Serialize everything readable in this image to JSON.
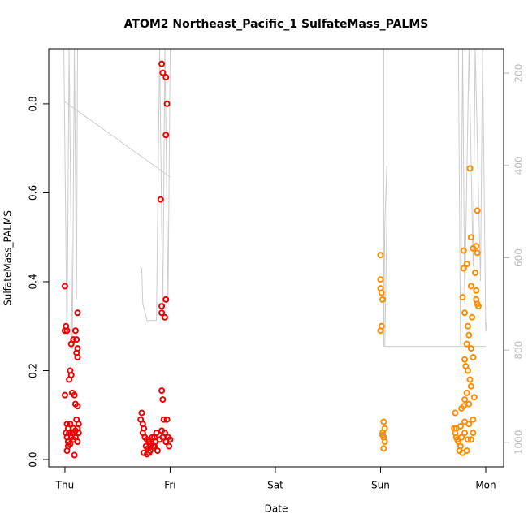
{
  "chart_data": {
    "type": "scatter",
    "title": "ATOM2 Northeast_Pacific_1 SulfateMass_PALMS",
    "xlabel": "Date",
    "ylabel": "SulfateMass_PALMS",
    "xlim": [
      -0.154,
      4.17
    ],
    "xticks": [
      {
        "value": 0,
        "label": "Thu"
      },
      {
        "value": 1,
        "label": "Fri"
      },
      {
        "value": 2,
        "label": "Sat"
      },
      {
        "value": 3,
        "label": "Sun"
      },
      {
        "value": 4,
        "label": "Mon"
      }
    ],
    "ylim": [
      -0.0164,
      0.924
    ],
    "yticks": [
      {
        "value": 0,
        "label": "0.0"
      },
      0.2,
      0.4,
      0.6,
      0.8
    ],
    "y2lim": [
      1053,
      147
    ],
    "y2ticks": [
      200,
      400,
      600,
      800,
      1000
    ],
    "series": [
      {
        "color": "#ee0000",
        "x": [
          0.0,
          0.01,
          0.0,
          0.02,
          0.0,
          0.05,
          0.06,
          0.04,
          0.08,
          0.1,
          0.11,
          0.12,
          0.11,
          0.12,
          0.07,
          0.09,
          0.1,
          0.12,
          0.12,
          0.06,
          0.02,
          0.03,
          0.01,
          0.02,
          0.03,
          0.05,
          0.06,
          0.07,
          0.08,
          0.09,
          0.1,
          0.12,
          0.13,
          0.11,
          0.05,
          0.04,
          0.03,
          0.02,
          0.09,
          0.12,
          0.1,
          0.08,
          0.13,
          0.92,
          0.93,
          0.96,
          0.97,
          0.96,
          0.91,
          0.96,
          0.92,
          0.92,
          0.95,
          0.92,
          0.93,
          0.73,
          0.72,
          0.74,
          0.75,
          0.74,
          0.76,
          0.78,
          0.8,
          0.82,
          0.84,
          0.79,
          0.81,
          0.85,
          0.86,
          0.83,
          0.77,
          0.75,
          0.78,
          0.8,
          0.88,
          0.9,
          0.92,
          0.94,
          0.97,
          0.95,
          0.98,
          1.0,
          0.99,
          0.96,
          0.93,
          0.87,
          0.85
        ],
        "values": [
          0.39,
          0.3,
          0.29,
          0.29,
          0.145,
          0.2,
          0.19,
          0.18,
          0.27,
          0.29,
          0.27,
          0.25,
          0.24,
          0.23,
          0.15,
          0.145,
          0.125,
          0.12,
          0.33,
          0.26,
          0.08,
          0.07,
          0.06,
          0.05,
          0.04,
          0.035,
          0.05,
          0.06,
          0.07,
          0.06,
          0.065,
          0.07,
          0.08,
          0.09,
          0.08,
          0.06,
          0.03,
          0.02,
          0.01,
          0.04,
          0.05,
          0.045,
          0.06,
          0.89,
          0.87,
          0.86,
          0.8,
          0.73,
          0.585,
          0.36,
          0.345,
          0.33,
          0.32,
          0.155,
          0.135,
          0.105,
          0.09,
          0.08,
          0.07,
          0.06,
          0.05,
          0.045,
          0.04,
          0.035,
          0.03,
          0.025,
          0.02,
          0.03,
          0.04,
          0.05,
          0.03,
          0.015,
          0.012,
          0.015,
          0.02,
          0.045,
          0.065,
          0.09,
          0.09,
          0.06,
          0.05,
          0.045,
          0.03,
          0.04,
          0.05,
          0.06,
          0.05
        ]
      },
      {
        "color": "#ff8c00",
        "x": [
          3.0,
          3.0,
          3.0,
          3.01,
          3.02,
          3.01,
          3.0,
          3.03,
          3.04,
          3.02,
          3.03,
          3.04,
          3.03,
          3.02,
          3.79,
          3.79,
          3.78,
          3.82,
          3.85,
          3.86,
          3.86,
          3.92,
          3.88,
          3.91,
          3.92,
          3.9,
          3.91,
          3.91,
          3.92,
          3.93,
          3.87,
          3.8,
          3.83,
          3.84,
          3.82,
          3.86,
          3.88,
          3.8,
          3.81,
          3.83,
          3.85,
          3.86,
          3.82,
          3.89,
          3.8,
          3.84,
          3.79,
          3.77,
          3.71,
          3.88,
          3.84,
          3.8,
          3.76,
          3.72,
          3.7,
          3.71,
          3.72,
          3.73,
          3.74,
          3.76,
          3.75,
          3.78,
          3.77,
          3.8,
          3.83,
          3.86,
          3.88,
          3.82
        ],
        "values": [
          0.46,
          0.405,
          0.385,
          0.375,
          0.36,
          0.3,
          0.29,
          0.085,
          0.07,
          0.06,
          0.05,
          0.04,
          0.025,
          0.055,
          0.47,
          0.43,
          0.365,
          0.44,
          0.655,
          0.5,
          0.39,
          0.56,
          0.475,
          0.48,
          0.465,
          0.42,
          0.38,
          0.36,
          0.35,
          0.345,
          0.32,
          0.33,
          0.3,
          0.28,
          0.26,
          0.25,
          0.23,
          0.225,
          0.21,
          0.2,
          0.18,
          0.165,
          0.15,
          0.14,
          0.135,
          0.125,
          0.12,
          0.115,
          0.105,
          0.09,
          0.08,
          0.085,
          0.075,
          0.07,
          0.07,
          0.06,
          0.05,
          0.045,
          0.04,
          0.03,
          0.02,
          0.015,
          0.05,
          0.06,
          0.045,
          0.045,
          0.06,
          0.02
        ]
      },
      {
        "type": "line",
        "axis": "y2",
        "color": "#cccccc",
        "x": [
          -0.01,
          0.02,
          0.04,
          0.07,
          0.09,
          0.11,
          0.12,
          null,
          0.0,
          1.0,
          null,
          0.73,
          0.74,
          0.78,
          0.87,
          0.9,
          0.93,
          0.95,
          0.98,
          1.0,
          null,
          3.03,
          3.03,
          3.04,
          3.06,
          3.06,
          3.04,
          4.0,
          null,
          3.03,
          3.74,
          3.76,
          3.78,
          3.8,
          3.84,
          3.88,
          3.9,
          3.95,
          3.97,
          4.0,
          4.01
        ],
        "values": [
          147,
          798,
          147,
          798,
          147,
          690,
          147,
          null,
          262,
          425,
          null,
          622,
          700,
          736,
          736,
          147,
          720,
          147,
          690,
          147,
          null,
          147,
          792,
          530,
          400,
          530,
          792,
          792,
          null,
          147,
          147,
          790,
          147,
          700,
          147,
          620,
          147,
          650,
          147,
          760,
          740
        ]
      }
    ]
  }
}
